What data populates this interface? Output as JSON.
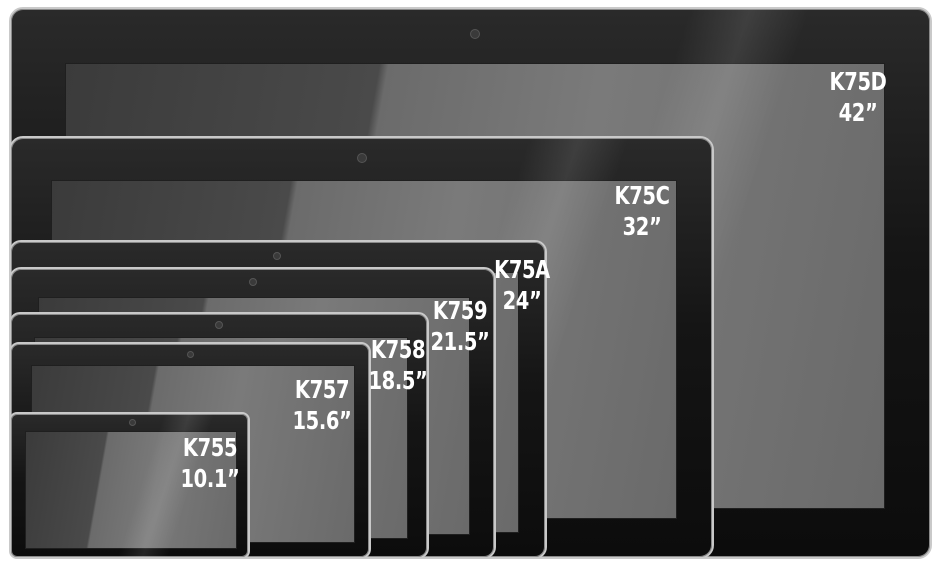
{
  "devices": [
    {
      "model": "K75D",
      "size": "42”"
    },
    {
      "model": "K75C",
      "size": "32”"
    },
    {
      "model": "K75A",
      "size": "24”"
    },
    {
      "model": "K759",
      "size": "21.5”"
    },
    {
      "model": "K758",
      "size": "18.5”"
    },
    {
      "model": "K757",
      "size": "15.6”"
    },
    {
      "model": "K755",
      "size": "10.1”"
    }
  ],
  "colors": {
    "bezel": "#111111",
    "frame": "#c9c9c9",
    "screen": "#6a6a6a",
    "label_text": "#ffffff"
  }
}
